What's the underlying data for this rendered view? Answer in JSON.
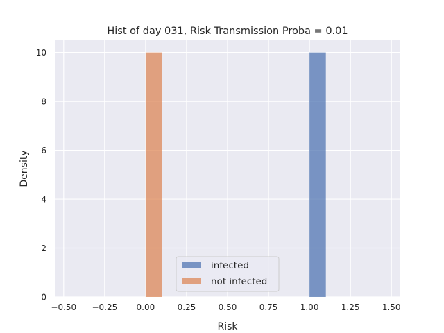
{
  "chart_data": {
    "type": "bar",
    "title": "Hist of day 031, Risk Transmission Proba = 0.01",
    "xlabel": "Risk",
    "ylabel": "Density",
    "xlim": [
      -0.55,
      1.55
    ],
    "ylim": [
      0,
      10.5
    ],
    "xticks": [
      -0.5,
      -0.25,
      0.0,
      0.25,
      0.5,
      0.75,
      1.0,
      1.25,
      1.5
    ],
    "xtick_labels": [
      "−0.50",
      "−0.25",
      "0.00",
      "0.25",
      "0.50",
      "0.75",
      "1.00",
      "1.25",
      "1.50"
    ],
    "yticks": [
      0,
      2,
      4,
      6,
      8,
      10
    ],
    "ytick_labels": [
      "0",
      "2",
      "4",
      "6",
      "8",
      "10"
    ],
    "grid": true,
    "legend_position": "bottom-center",
    "series": [
      {
        "name": "infected",
        "color": "#4c72b0",
        "bins": [
          {
            "x0": 1.0,
            "x1": 1.1,
            "value": 10
          }
        ]
      },
      {
        "name": "not infected",
        "color": "#dd8452",
        "bins": [
          {
            "x0": 0.0,
            "x1": 0.1,
            "value": 10
          }
        ]
      }
    ]
  }
}
